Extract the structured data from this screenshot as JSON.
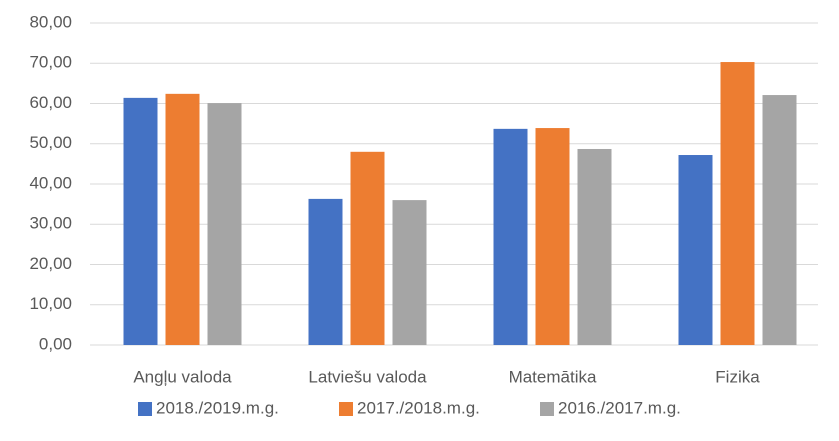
{
  "chart_data": {
    "type": "bar",
    "categories": [
      "Angļu valoda",
      "Latviešu valoda",
      "Matemātika",
      "Fizika"
    ],
    "series": [
      {
        "name": "2018./2019.m.g.",
        "color": "#4472c4",
        "values": [
          61.4,
          36.3,
          53.7,
          47.2
        ]
      },
      {
        "name": "2017./2018.m.g.",
        "color": "#ed7d31",
        "values": [
          62.4,
          48.0,
          53.9,
          70.3
        ]
      },
      {
        "name": "2016./2017.m.g.",
        "color": "#a5a5a5",
        "values": [
          60.1,
          36.0,
          48.7,
          62.1
        ]
      }
    ],
    "ylim": [
      0,
      80
    ],
    "yticks": [
      {
        "value": 0,
        "label": "0,00"
      },
      {
        "value": 10,
        "label": "10,00"
      },
      {
        "value": 20,
        "label": "20,00"
      },
      {
        "value": 30,
        "label": "30,00"
      },
      {
        "value": 40,
        "label": "40,00"
      },
      {
        "value": 50,
        "label": "50,00"
      },
      {
        "value": 60,
        "label": "60,00"
      },
      {
        "value": 70,
        "label": "70,00"
      },
      {
        "value": 80,
        "label": "80,00"
      }
    ],
    "grid": true,
    "legend": "bottom"
  }
}
